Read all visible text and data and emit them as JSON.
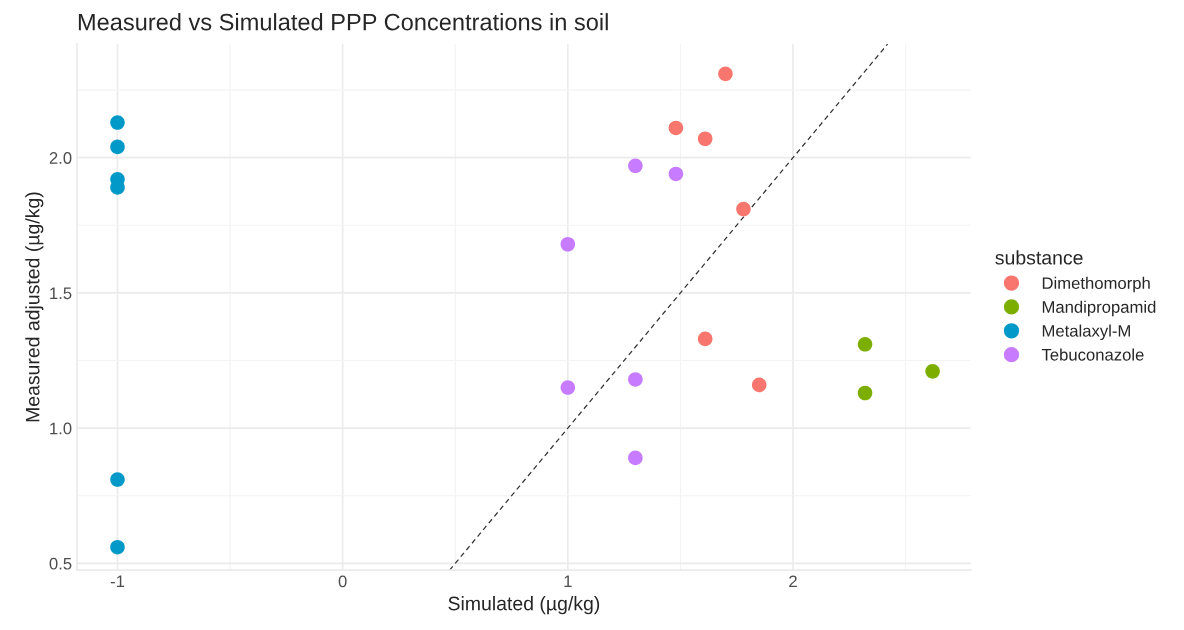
{
  "chart_data": {
    "type": "scatter",
    "title": "Measured vs Simulated PPP Concentrations in soil",
    "xlabel": "Simulated (µg/kg)",
    "ylabel": "Measured adjusted (µg/kg)",
    "legend_title": "substance",
    "series": [
      {
        "name": "Dimethomorph",
        "color": "#f8766d",
        "x": [
          1.7,
          1.48,
          1.61,
          1.78,
          1.61,
          1.85
        ],
        "values": [
          2.31,
          2.11,
          2.07,
          1.81,
          1.33,
          1.16
        ]
      },
      {
        "name": "Mandipropamid",
        "color": "#7cae00",
        "x": [
          2.32,
          2.62,
          2.32
        ],
        "values": [
          1.31,
          1.21,
          1.13
        ]
      },
      {
        "name": "Metalaxyl-M",
        "color": "#0099c8",
        "x": [
          -1,
          -1,
          -1,
          -1,
          -1,
          -1
        ],
        "values": [
          2.13,
          2.04,
          1.92,
          1.89,
          0.81,
          0.56
        ]
      },
      {
        "name": "Tebuconazole",
        "color": "#c77cff",
        "x": [
          1.3,
          1.48,
          1.0,
          1.0,
          1.3,
          1.3
        ],
        "values": [
          1.97,
          1.94,
          1.68,
          1.15,
          1.18,
          0.89
        ]
      },
      {
        "type": "line",
        "color": "#333333",
        "line_style": "dashed",
        "marker": "none",
        "x": [
          0.475,
          2.42
        ],
        "values": [
          0.475,
          2.42
        ]
      }
    ],
    "xlim": [
      -1.18,
      2.79
    ],
    "ylim": [
      0.475,
      2.42
    ],
    "xticks": [
      -1,
      0,
      1,
      2
    ],
    "yticks": [
      0.5,
      {
        "value": 1,
        "label": "1.0"
      },
      1.5,
      {
        "value": 2,
        "label": "2.0"
      }
    ],
    "grid": true,
    "legend": "right",
    "marker": "circle"
  }
}
